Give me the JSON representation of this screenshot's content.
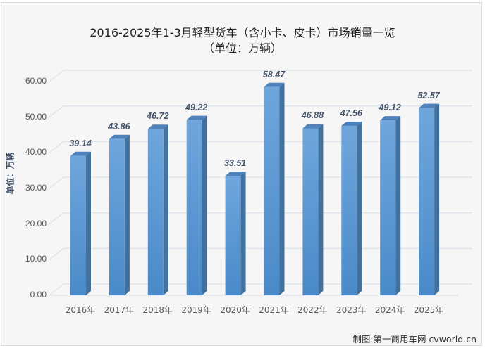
{
  "title": {
    "line1": "2016-2025年1-3月轻型货车（含小卡、皮卡）市场销量一览",
    "line2": "（单位：万辆）"
  },
  "y_axis_label": "单位：万辆",
  "footer": "制图:第一商用车网 cvworld.cn",
  "colors": {
    "bar_front": "#5b9bd5",
    "bar_side": "#41719c",
    "bar_top": "#4f81bd",
    "grid": "#dde3ea",
    "background": "#f6f6f6"
  },
  "chart_data": {
    "type": "bar",
    "title": "2016-2025年1-3月轻型货车（含小卡、皮卡）市场销量一览（单位：万辆）",
    "xlabel": "",
    "ylabel": "单位：万辆",
    "categories": [
      "2016年",
      "2017年",
      "2018年",
      "2019年",
      "2020年",
      "2021年",
      "2022年",
      "2023年",
      "2024年",
      "2025年"
    ],
    "values": [
      39.14,
      43.86,
      46.72,
      49.22,
      33.51,
      58.47,
      46.88,
      47.56,
      49.12,
      52.57
    ],
    "value_labels": [
      "39.14",
      "43.86",
      "46.72",
      "49.22",
      "33.51",
      "58.47",
      "46.88",
      "47.56",
      "49.12",
      "52.57"
    ],
    "yticks": [
      "0.00",
      "10.00",
      "20.00",
      "30.00",
      "40.00",
      "50.00",
      "60.00"
    ],
    "ylim": [
      0,
      60
    ],
    "grid": true,
    "style": "3d-column",
    "legend": null
  }
}
